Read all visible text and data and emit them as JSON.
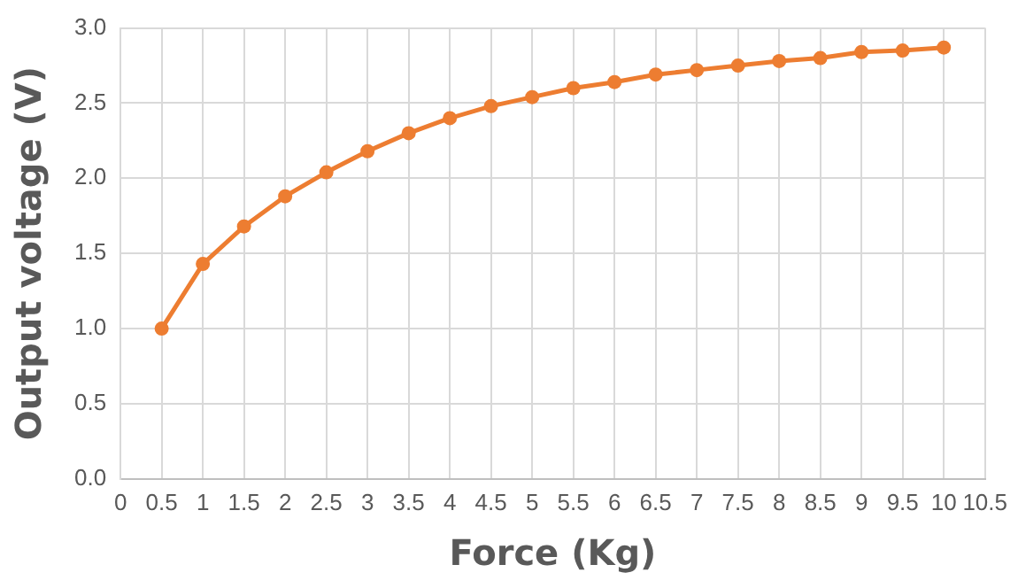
{
  "chart_data": {
    "type": "line",
    "xlabel": "Force (Kg)",
    "ylabel": "Output voltage (V)",
    "x": [
      0.5,
      1,
      1.5,
      2,
      2.5,
      3,
      3.5,
      4,
      4.5,
      5,
      5.5,
      6,
      6.5,
      7,
      7.5,
      8,
      8.5,
      9,
      9.5,
      10
    ],
    "series": [
      {
        "color": "#ed7d31",
        "values": [
          1.0,
          1.43,
          1.68,
          1.88,
          2.04,
          2.18,
          2.3,
          2.4,
          2.48,
          2.54,
          2.6,
          2.64,
          2.69,
          2.72,
          2.75,
          2.78,
          2.8,
          2.84,
          2.85,
          2.87
        ]
      }
    ],
    "xlim": [
      0,
      10.5
    ],
    "xticks": [
      0,
      0.5,
      1,
      1.5,
      2,
      2.5,
      3,
      3.5,
      4,
      4.5,
      5,
      5.5,
      6,
      6.5,
      7,
      7.5,
      8,
      8.5,
      9,
      9.5,
      10,
      10.5
    ],
    "ylim": [
      0,
      3
    ],
    "yticks": [
      {
        "value": 0,
        "label": "0.0"
      },
      {
        "value": 0.5,
        "label": "0.5"
      },
      {
        "value": 1,
        "label": "1.0"
      },
      {
        "value": 1.5,
        "label": "1.5"
      },
      {
        "value": 2,
        "label": "2.0"
      },
      {
        "value": 2.5,
        "label": "2.5"
      },
      {
        "value": 3,
        "label": "3.0"
      }
    ],
    "grid": true,
    "legend": false,
    "marker": "circle",
    "line_style": "solid"
  }
}
